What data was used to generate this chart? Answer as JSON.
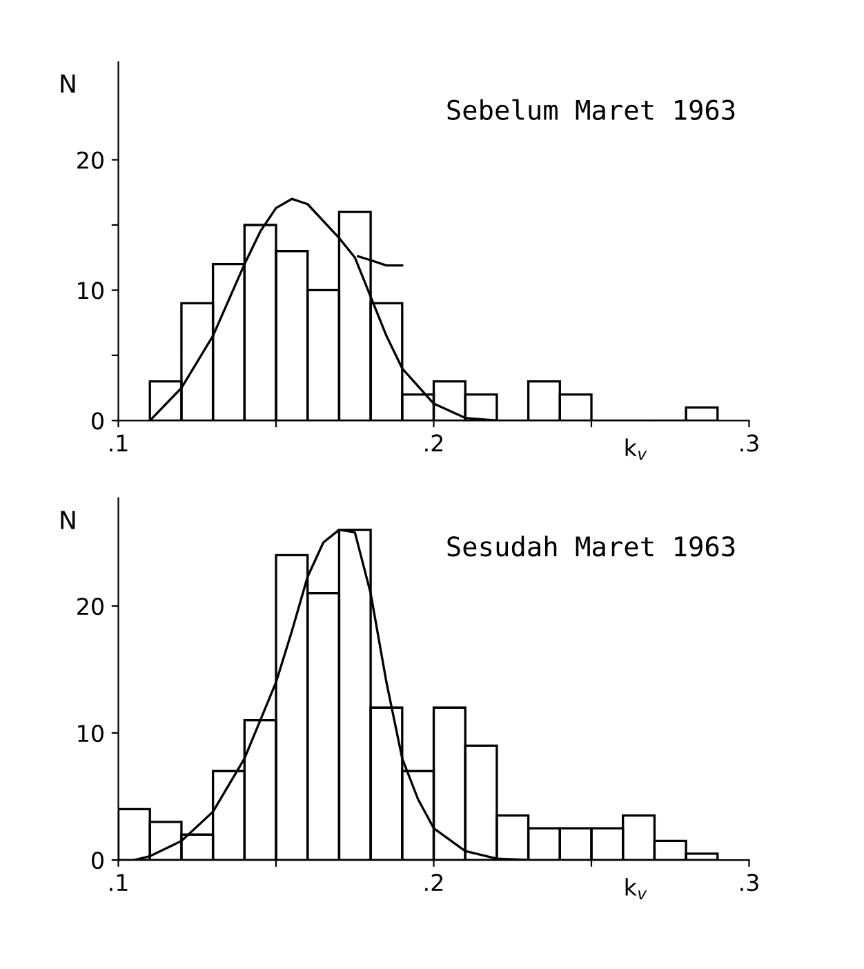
{
  "chart_data": [
    {
      "type": "histogram",
      "annotations": [
        "Sebelum Maret 1963"
      ],
      "xlabel": "k$_{v}$",
      "ylabel": "N",
      "xlim": [
        0.1,
        0.3
      ],
      "ylim": [
        0,
        27.5
      ],
      "xticks": [
        {
          "value": 0.1,
          "label": ".1"
        },
        {
          "value": 0.15,
          "label": null
        },
        {
          "value": 0.2,
          "label": ".2"
        },
        {
          "value": 0.25,
          "label": null
        },
        {
          "value": 0.3,
          "label": ".3"
        }
      ],
      "yticks": [
        0,
        {
          "value": 5,
          "label": null
        },
        10,
        {
          "value": 15,
          "label": null
        },
        20
      ],
      "grid": false,
      "series": [
        {
          "type": "histogram",
          "color": "#000000",
          "bins": [
            0.11,
            0.12,
            0.13,
            0.14,
            0.15,
            0.16,
            0.17,
            0.18,
            0.19,
            0.2,
            0.21,
            0.22,
            0.23,
            0.24,
            0.25,
            0.26,
            0.27,
            0.28,
            0.29
          ],
          "values": [
            3,
            9,
            12,
            15,
            13,
            10,
            16,
            9,
            2,
            3,
            2,
            0,
            3,
            2,
            0,
            0,
            0,
            1
          ]
        },
        {
          "type": "line",
          "color": "#000000",
          "x": [
            0.11,
            0.12,
            0.13,
            0.14,
            0.145,
            0.15,
            0.155,
            0.16,
            0.17,
            0.175,
            0.18,
            0.185,
            0.19,
            0.2,
            0.21,
            0.22
          ],
          "values": [
            0,
            2.5,
            6.5,
            12,
            14.5,
            16.3,
            17,
            16.6,
            14,
            12.5,
            9.5,
            6.5,
            4,
            1.3,
            0.2,
            0
          ]
        },
        {
          "type": "line",
          "color": "#000000",
          "x": [
            0.176,
            0.18,
            0.185,
            0.19
          ],
          "values": [
            12.6,
            12.3,
            11.9,
            11.9
          ]
        }
      ]
    },
    {
      "type": "histogram",
      "annotations": [
        "Sesudah Maret 1963"
      ],
      "xlabel": "k$_{v}$",
      "ylabel": "N",
      "xlim": [
        0.1,
        0.3
      ],
      "ylim": [
        0,
        28.5
      ],
      "xticks": [
        {
          "value": 0.1,
          "label": ".1"
        },
        {
          "value": 0.15,
          "label": null
        },
        {
          "value": 0.2,
          "label": ".2"
        },
        {
          "value": 0.25,
          "label": null
        },
        {
          "value": 0.3,
          "label": ".3"
        }
      ],
      "yticks": [
        0,
        10,
        20
      ],
      "grid": false,
      "series": [
        {
          "type": "histogram",
          "color": "#000000",
          "bins": [
            0.1,
            0.11,
            0.12,
            0.13,
            0.14,
            0.15,
            0.16,
            0.17,
            0.18,
            0.19,
            0.2,
            0.21,
            0.22,
            0.23,
            0.24,
            0.25,
            0.26,
            0.27,
            0.28,
            0.29
          ],
          "values": [
            4,
            3,
            2,
            7,
            11,
            24,
            21,
            26,
            12,
            7,
            12,
            9,
            3.5,
            2.5,
            2.5,
            2.5,
            3.5,
            1.5,
            0.5
          ]
        },
        {
          "type": "line",
          "color": "#000000",
          "x": [
            0.105,
            0.11,
            0.12,
            0.13,
            0.14,
            0.15,
            0.155,
            0.16,
            0.165,
            0.17,
            0.175,
            0.18,
            0.185,
            0.19,
            0.195,
            0.2,
            0.21,
            0.22,
            0.23
          ],
          "values": [
            0,
            0.3,
            1.5,
            3.8,
            8,
            14,
            18,
            22.3,
            25,
            26,
            25.8,
            21,
            14,
            8,
            4.8,
            2.5,
            0.7,
            0.1,
            0
          ]
        }
      ]
    }
  ]
}
